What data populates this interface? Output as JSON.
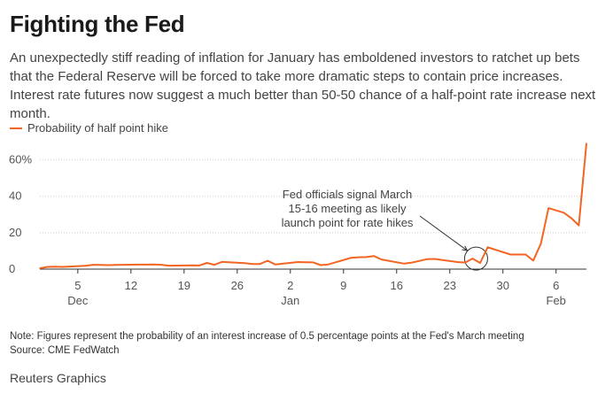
{
  "header": {
    "title": "Fighting the Fed",
    "subtitle": "An unexpectedly stiff reading of inflation for January has emboldened investors to ratchet up bets that the Federal Reserve will be forced to take more dramatic steps to contain price increases. Interest rate futures now suggest a much better than 50-50 chance of a half-point rate increase next month."
  },
  "footer": {
    "note": "Note: Figures represent the probability of an interest increase of 0.5 percentage points at the Fed's March meeting",
    "source": "Source: CME FedWatch",
    "credit": "Reuters Graphics"
  },
  "colors": {
    "series": "#f26522",
    "axis": "#333333",
    "grid": "#cccccc"
  },
  "chart_data": {
    "type": "line",
    "title": "Fighting the Fed",
    "xlabel": "",
    "ylabel": "",
    "grid": true,
    "legend_position": "top-left",
    "ylim": [
      0,
      70
    ],
    "y_ticks": [
      {
        "value": 0,
        "label": "0"
      },
      {
        "value": 20,
        "label": "20"
      },
      {
        "value": 40,
        "label": "40"
      },
      {
        "value": 60,
        "label": "60%"
      }
    ],
    "x_ticks": [
      {
        "date": "2021-12-05",
        "day": "5",
        "month": "Dec"
      },
      {
        "date": "2021-12-12",
        "day": "12",
        "month": ""
      },
      {
        "date": "2021-12-19",
        "day": "19",
        "month": ""
      },
      {
        "date": "2021-12-26",
        "day": "26",
        "month": ""
      },
      {
        "date": "2022-01-02",
        "day": "2",
        "month": "Jan"
      },
      {
        "date": "2022-01-09",
        "day": "9",
        "month": ""
      },
      {
        "date": "2022-01-16",
        "day": "16",
        "month": ""
      },
      {
        "date": "2022-01-23",
        "day": "23",
        "month": ""
      },
      {
        "date": "2022-01-30",
        "day": "30",
        "month": ""
      },
      {
        "date": "2022-02-06",
        "day": "6",
        "month": "Feb"
      }
    ],
    "xlim": [
      "2021-11-30",
      "2022-02-10"
    ],
    "series": [
      {
        "name": "Probability of half point hike",
        "points": [
          [
            "2021-11-30",
            0.5
          ],
          [
            "2021-12-01",
            1.2
          ],
          [
            "2021-12-02",
            1.3
          ],
          [
            "2021-12-03",
            1.2
          ],
          [
            "2021-12-06",
            1.8
          ],
          [
            "2021-12-07",
            2.4
          ],
          [
            "2021-12-08",
            2.3
          ],
          [
            "2021-12-09",
            2.2
          ],
          [
            "2021-12-10",
            2.3
          ],
          [
            "2021-12-13",
            2.5
          ],
          [
            "2021-12-14",
            2.5
          ],
          [
            "2021-12-15",
            2.6
          ],
          [
            "2021-12-16",
            2.4
          ],
          [
            "2021-12-17",
            1.9
          ],
          [
            "2021-12-20",
            2.1
          ],
          [
            "2021-12-21",
            2.0
          ],
          [
            "2021-12-22",
            3.4
          ],
          [
            "2021-12-23",
            2.4
          ],
          [
            "2021-12-24",
            4.0
          ],
          [
            "2021-12-27",
            3.3
          ],
          [
            "2021-12-28",
            2.8
          ],
          [
            "2021-12-29",
            2.8
          ],
          [
            "2021-12-30",
            4.6
          ],
          [
            "2021-12-31",
            2.6
          ],
          [
            "2022-01-03",
            3.9
          ],
          [
            "2022-01-04",
            3.8
          ],
          [
            "2022-01-05",
            3.7
          ],
          [
            "2022-01-06",
            2.2
          ],
          [
            "2022-01-07",
            2.6
          ],
          [
            "2022-01-10",
            6.2
          ],
          [
            "2022-01-11",
            6.5
          ],
          [
            "2022-01-12",
            6.6
          ],
          [
            "2022-01-13",
            7.2
          ],
          [
            "2022-01-14",
            5.3
          ],
          [
            "2022-01-17",
            3.0
          ],
          [
            "2022-01-18",
            3.6
          ],
          [
            "2022-01-19",
            4.5
          ],
          [
            "2022-01-20",
            5.5
          ],
          [
            "2022-01-21",
            5.6
          ],
          [
            "2022-01-24",
            3.9
          ],
          [
            "2022-01-25",
            3.6
          ],
          [
            "2022-01-26",
            5.8
          ],
          [
            "2022-01-27",
            3.4
          ],
          [
            "2022-01-28",
            12.0
          ],
          [
            "2022-01-31",
            8.0
          ],
          [
            "2022-02-01",
            8.0
          ],
          [
            "2022-02-02",
            8.0
          ],
          [
            "2022-02-03",
            4.7
          ],
          [
            "2022-02-04",
            14.0
          ],
          [
            "2022-02-05",
            33.5
          ],
          [
            "2022-02-07",
            31.0
          ],
          [
            "2022-02-08",
            28.0
          ],
          [
            "2022-02-09",
            24.0
          ],
          [
            "2022-02-10",
            69.0
          ]
        ]
      }
    ],
    "annotations": [
      {
        "lines": [
          "Fed officials signal March",
          "15-16 meeting as likely",
          "launch point for rate hikes"
        ],
        "date": "2022-01-26",
        "value": 5.8
      }
    ]
  }
}
